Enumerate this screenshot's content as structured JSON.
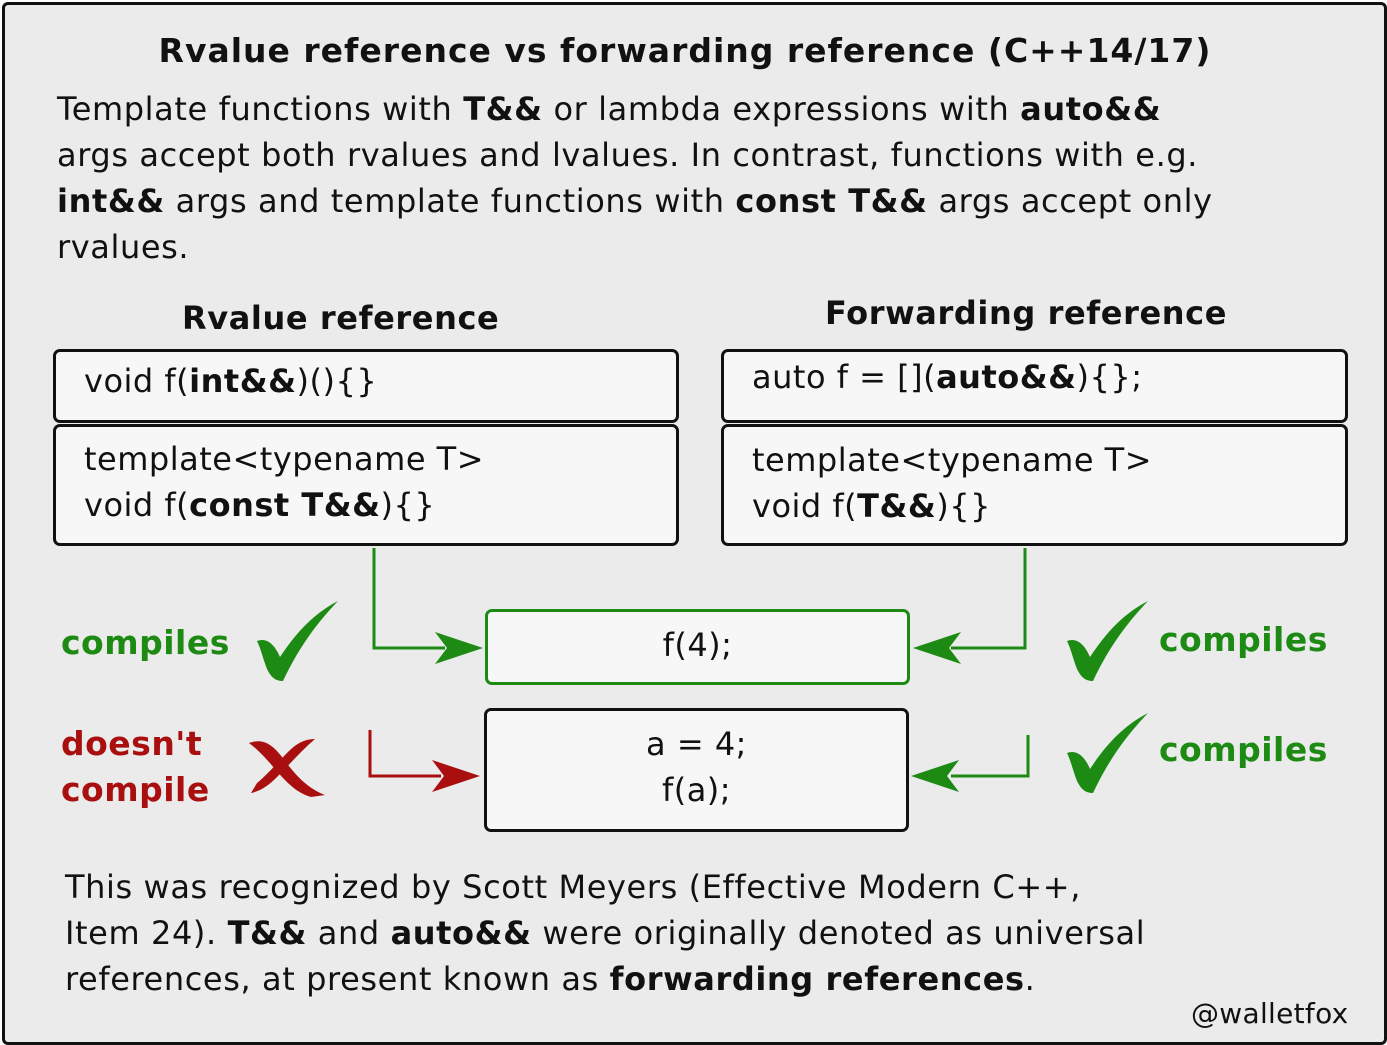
{
  "title": "Rvalue reference vs forwarding reference (C++14/17)",
  "intro": {
    "line1": [
      {
        "t": "Template functions with "
      },
      {
        "t": "T&&",
        "b": true
      },
      {
        "t": " or lambda expressions with "
      },
      {
        "t": "auto&&",
        "b": true
      }
    ],
    "line2": [
      {
        "t": "args accept both rvalues and lvalues. In contrast, functions with e.g."
      }
    ],
    "line3": [
      {
        "t": "int&&",
        "b": true
      },
      {
        "t": " args and template functions with "
      },
      {
        "t": "const T&&",
        "b": true
      },
      {
        "t": " args accept only"
      }
    ],
    "line4": [
      {
        "t": "rvalues."
      }
    ]
  },
  "rvalue_column": {
    "heading": "Rvalue reference",
    "box1": {
      "line1": [
        {
          "t": "void f("
        },
        {
          "t": "int&&",
          "b": true
        },
        {
          "t": ")(){}"
        }
      ]
    },
    "box2": {
      "line1": [
        {
          "t": "template<typename T>"
        }
      ],
      "line2": [
        {
          "t": "void f("
        },
        {
          "t": "const T&&",
          "b": true
        },
        {
          "t": "){}"
        }
      ]
    }
  },
  "forwarding_column": {
    "heading": "Forwarding reference",
    "box1": {
      "line1": [
        {
          "t": "auto f = []("
        },
        {
          "t": "auto&&",
          "b": true
        },
        {
          "t": "){};"
        }
      ]
    },
    "box2": {
      "line1": [
        {
          "t": "template<typename T>"
        }
      ],
      "line2": [
        {
          "t": "void f("
        },
        {
          "t": "T&&",
          "b": true
        },
        {
          "t": "){}"
        }
      ]
    }
  },
  "calls": {
    "rvalue_call": "f(4);",
    "lvalue_call_line1": "a = 4;",
    "lvalue_call_line2": "f(a);"
  },
  "outcomes": {
    "rvalue_ref_with_rvalue": "compiles",
    "forwarding_ref_with_rvalue": "compiles",
    "rvalue_ref_with_lvalue_line1": "doesn't",
    "rvalue_ref_with_lvalue_line2": "compile",
    "forwarding_ref_with_lvalue": "compiles"
  },
  "outro": {
    "line1": [
      {
        "t": "This was recognized by Scott Meyers (Effective Modern C++,"
      }
    ],
    "line2": [
      {
        "t": "Item 24). "
      },
      {
        "t": "T&&",
        "b": true
      },
      {
        "t": " and "
      },
      {
        "t": "auto&&",
        "b": true
      },
      {
        "t": " were originally denoted as universal"
      }
    ],
    "line3": [
      {
        "t": "references, at present known as "
      },
      {
        "t": "forwarding references",
        "b": true
      },
      {
        "t": "."
      }
    ]
  },
  "credit": "@walletfox",
  "icons": {
    "check": "checkmark-icon",
    "cross": "cross-icon",
    "arrow": "arrow-right-icon"
  },
  "colors": {
    "success": "#1c8a13",
    "failure": "#a90f0f",
    "panel_background": "#ebebeb",
    "box_background": "#f7f7f7"
  }
}
